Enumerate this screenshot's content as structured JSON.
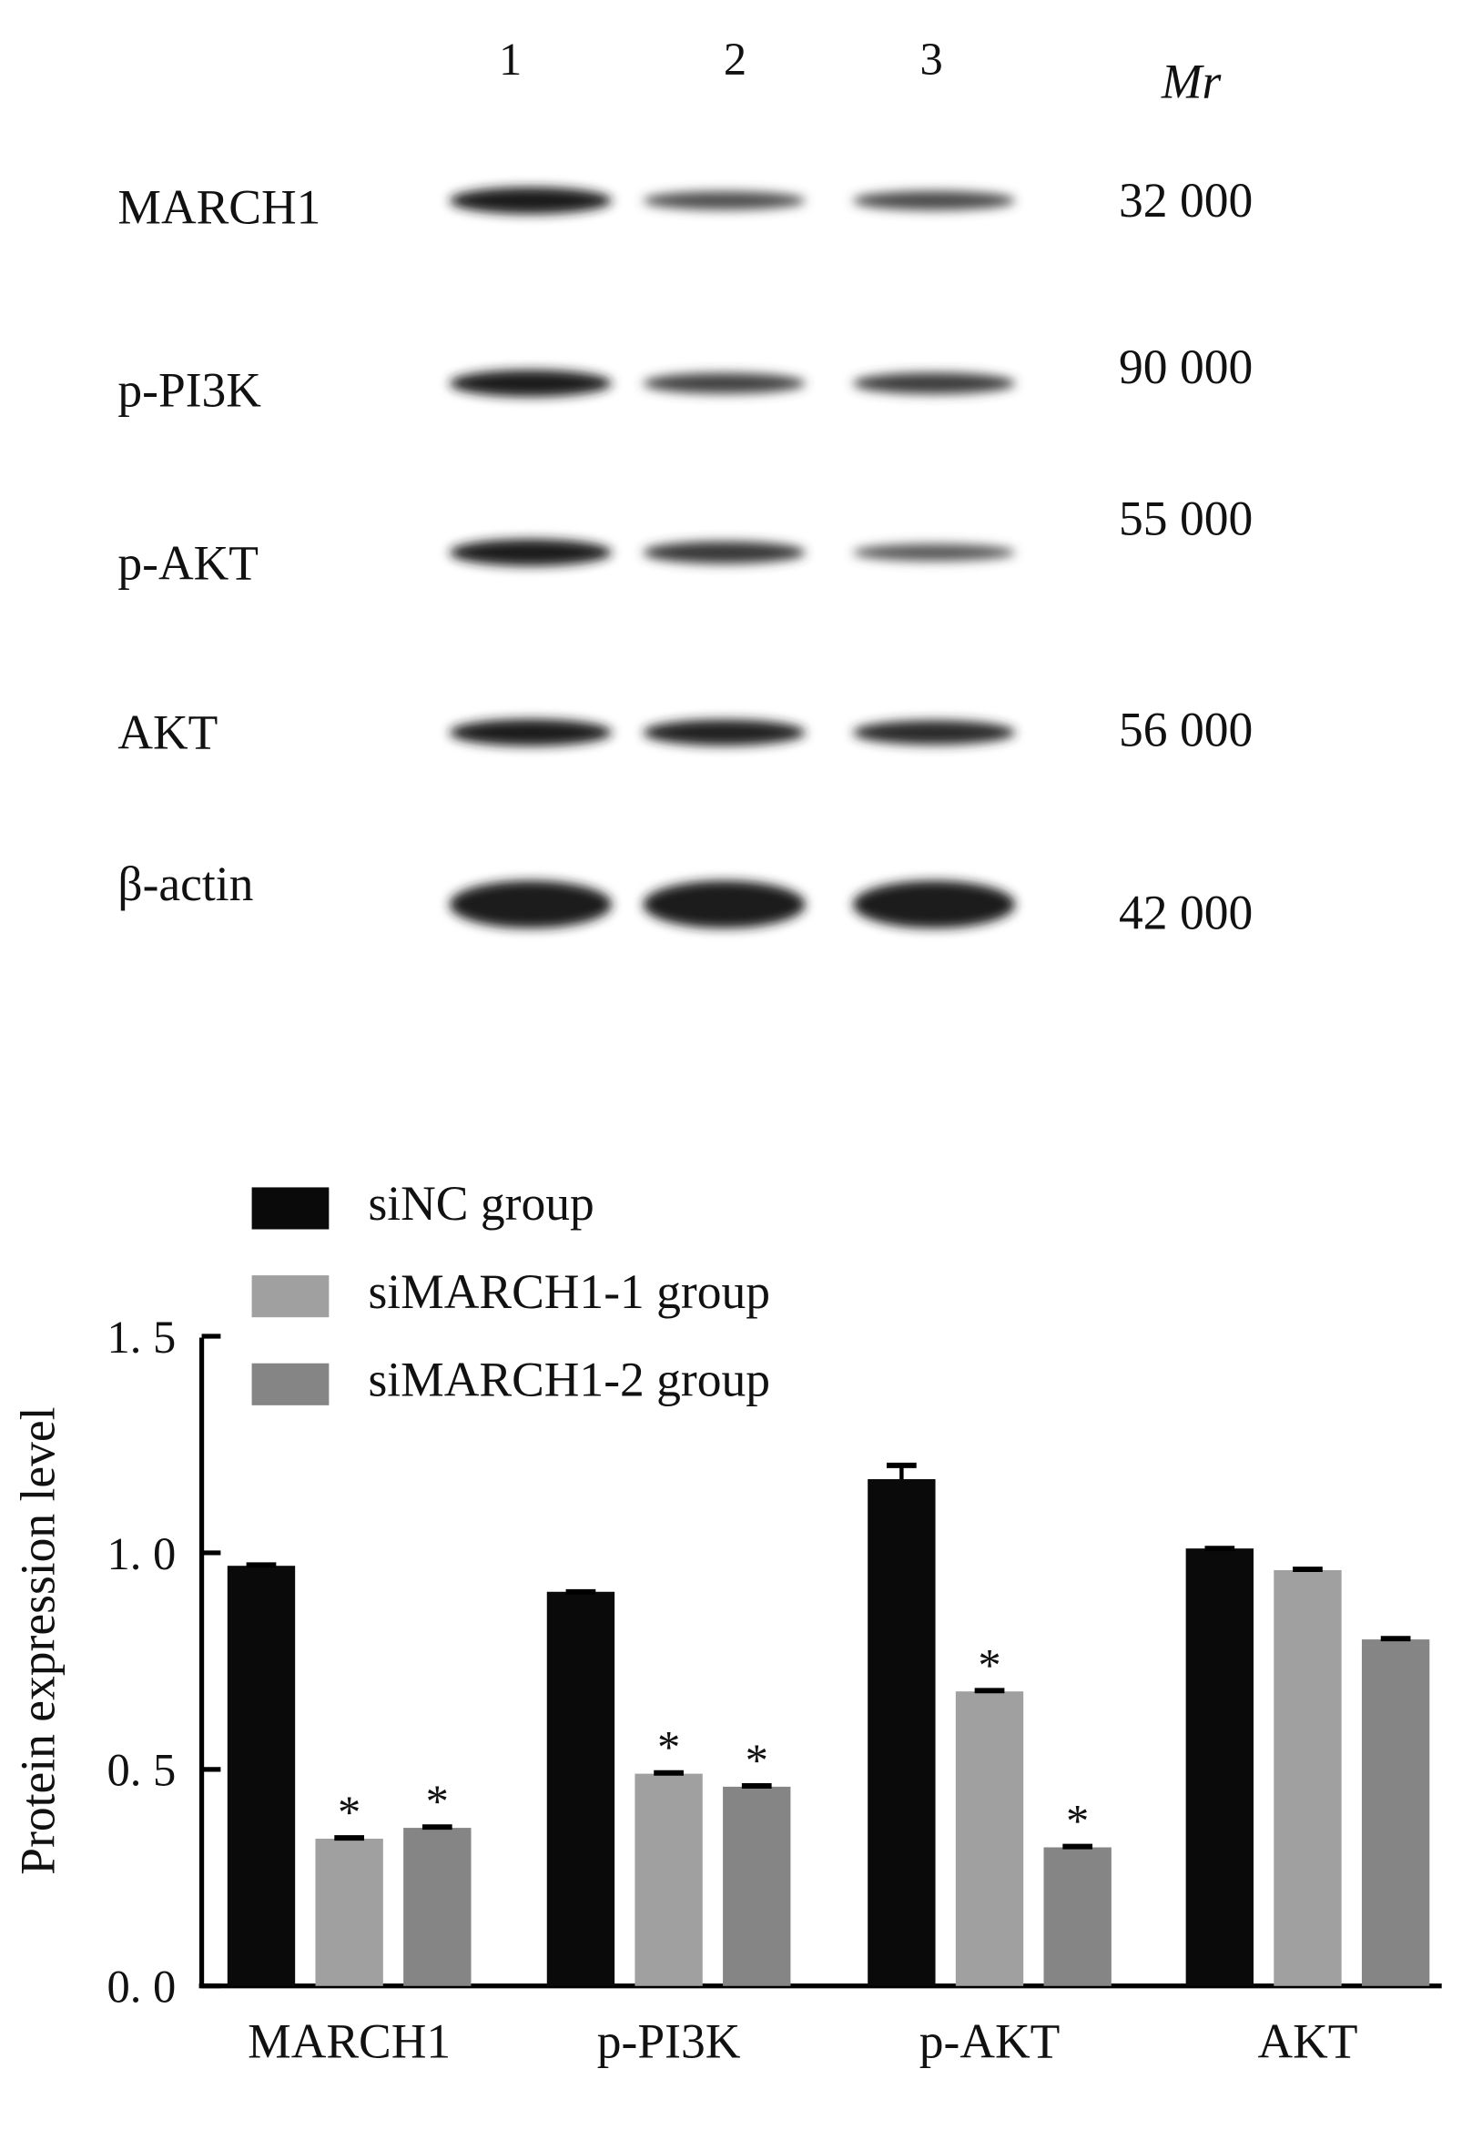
{
  "blot": {
    "lanes": [
      "1",
      "2",
      "3"
    ],
    "mr_header": "Mr",
    "rows": [
      {
        "label": "MARCH1",
        "mr": "32 000",
        "intensity": [
          1.0,
          0.45,
          0.5
        ]
      },
      {
        "label": "p-PI3K",
        "mr": "90 000",
        "intensity": [
          1.0,
          0.6,
          0.65
        ]
      },
      {
        "label": "p-AKT",
        "mr": "55 000",
        "intensity": [
          1.0,
          0.7,
          0.35
        ]
      },
      {
        "label": "AKT",
        "mr": "56 000",
        "intensity": [
          1.0,
          0.95,
          0.85
        ]
      },
      {
        "label": "β-actin",
        "mr": "42 000",
        "intensity": [
          1.0,
          1.0,
          1.0
        ]
      }
    ]
  },
  "chart_data": {
    "type": "bar",
    "ylabel": "Protein expression level",
    "xlabel": "",
    "ylim": [
      0,
      1.5
    ],
    "yticks": [
      "0. 0",
      "0. 5",
      "1. 0",
      "1. 5"
    ],
    "ytick_values": [
      0,
      0.5,
      1.0,
      1.5
    ],
    "categories": [
      "MARCH1",
      "p-PI3K",
      "p-AKT",
      "AKT"
    ],
    "legend_position": "top-left",
    "grid": false,
    "series": [
      {
        "name": "siNC group",
        "color": "#0a0a0a",
        "values": [
          0.97,
          0.91,
          1.17,
          1.01
        ],
        "errors": [
          0.005,
          0.003,
          0.035,
          0.003
        ],
        "significant": [
          false,
          false,
          false,
          false
        ]
      },
      {
        "name": "siMARCH1-1 group",
        "color": "#a0a0a0",
        "values": [
          0.34,
          0.49,
          0.68,
          0.96
        ],
        "errors": [
          0.005,
          0.005,
          0.005,
          0.005
        ],
        "significant": [
          true,
          true,
          true,
          false
        ]
      },
      {
        "name": "siMARCH1-2 group",
        "color": "#858585",
        "values": [
          0.365,
          0.46,
          0.32,
          0.8
        ],
        "errors": [
          0.005,
          0.005,
          0.005,
          0.005
        ],
        "significant": [
          true,
          true,
          true,
          false
        ]
      }
    ],
    "significance_marker": "*"
  }
}
